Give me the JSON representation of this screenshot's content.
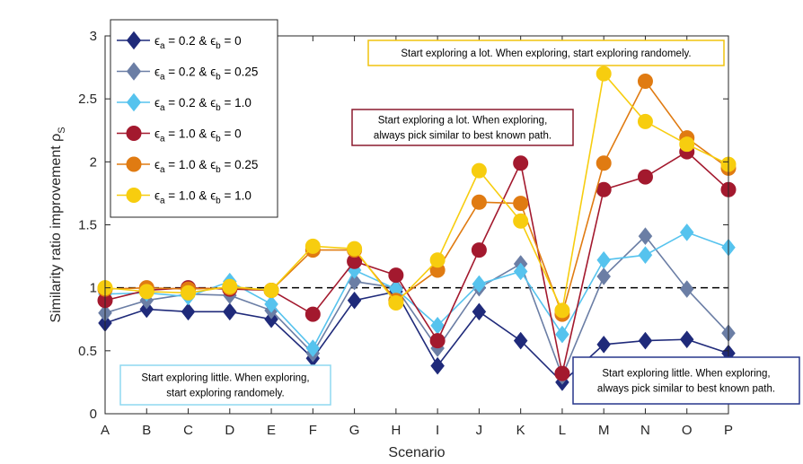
{
  "chart_data": {
    "type": "line",
    "xlabel": "Scenario",
    "ylabel": "Similarity ratio improvement ρ",
    "ylabel_sub": "S",
    "categories": [
      "A",
      "B",
      "C",
      "D",
      "E",
      "F",
      "G",
      "H",
      "I",
      "J",
      "K",
      "L",
      "M",
      "N",
      "O",
      "P"
    ],
    "ylim": [
      0,
      3
    ],
    "yticks": [
      0,
      0.5,
      1,
      1.5,
      2,
      2.5,
      3
    ],
    "ytick_labels": [
      "0",
      "0.5",
      "1",
      "1.5",
      "2",
      "2.5",
      "3"
    ],
    "reference_line": 1,
    "legend_position": "top-left",
    "series": [
      {
        "eps_a": "0.2",
        "eps_b": "0",
        "color": "#1f2a7a",
        "values": [
          0.72,
          0.83,
          0.81,
          0.81,
          0.75,
          0.44,
          0.9,
          0.97,
          0.38,
          0.81,
          0.58,
          0.25,
          0.55,
          0.58,
          0.59,
          0.48
        ]
      },
      {
        "eps_a": "0.2",
        "eps_b": "0.25",
        "color": "#6b7ea5",
        "values": [
          0.8,
          0.9,
          0.95,
          0.94,
          0.82,
          0.48,
          1.05,
          1.0,
          0.52,
          1.0,
          1.19,
          0.3,
          1.09,
          1.41,
          0.99,
          0.64
        ]
      },
      {
        "eps_a": "0.2",
        "eps_b": "1.0",
        "color": "#56c3ee",
        "values": [
          0.95,
          0.96,
          0.93,
          1.05,
          0.87,
          0.52,
          1.14,
          0.99,
          0.7,
          1.03,
          1.13,
          0.63,
          1.22,
          1.26,
          1.44,
          1.32
        ]
      },
      {
        "eps_a": "1.0",
        "eps_b": "0",
        "color": "#a3192e",
        "values": [
          0.9,
          0.98,
          1.0,
          0.99,
          0.98,
          0.79,
          1.21,
          1.1,
          0.58,
          1.3,
          1.99,
          0.32,
          1.78,
          1.88,
          2.08,
          1.78
        ]
      },
      {
        "eps_a": "1.0",
        "eps_b": "0.25",
        "color": "#e07b12",
        "values": [
          0.99,
          1.0,
          0.99,
          1.0,
          0.98,
          1.3,
          1.3,
          0.9,
          1.14,
          1.68,
          1.67,
          0.79,
          1.99,
          2.64,
          2.19,
          1.95
        ]
      },
      {
        "eps_a": "1.0",
        "eps_b": "1.0",
        "color": "#f7cd0f",
        "values": [
          1.0,
          0.97,
          0.96,
          1.01,
          0.98,
          1.33,
          1.31,
          0.88,
          1.22,
          1.93,
          1.53,
          0.82,
          2.7,
          2.32,
          2.14,
          1.98
        ]
      }
    ],
    "annotations": [
      {
        "lines": [
          "Start exploring a lot. When exploring, start exploring randomely."
        ],
        "color": "#f0c30f"
      },
      {
        "lines": [
          "Start exploring a lot. When exploring,",
          "always pick similar to best known path."
        ],
        "color": "#8b1a2e"
      },
      {
        "lines": [
          "Start exploring little. When exploring,",
          "start exploring randomely."
        ],
        "color": "#8fd8f0"
      },
      {
        "lines": [
          "Start exploring little. When exploring,",
          "always pick similar to best known path."
        ],
        "color": "#27368c"
      }
    ],
    "legend_labels": {
      "a": "a",
      "b": "b",
      "and": "&",
      "eq": "="
    }
  }
}
